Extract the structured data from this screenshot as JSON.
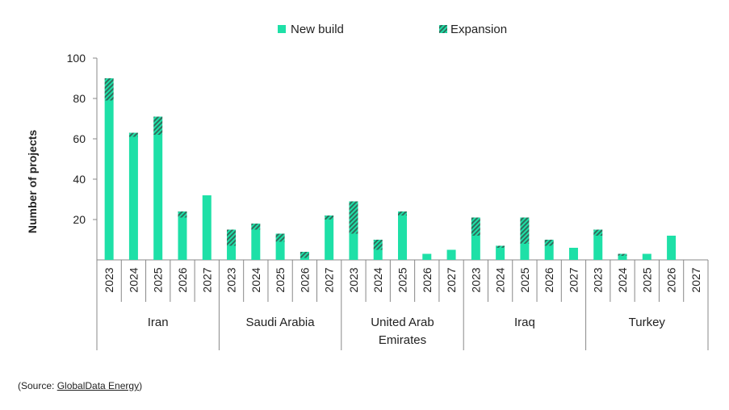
{
  "chart_data": {
    "type": "bar",
    "stacked": true,
    "ylabel": "Number of projects",
    "ylim": [
      0,
      100
    ],
    "yticks": [
      20,
      40,
      60,
      80,
      100
    ],
    "grid": false,
    "legend_position": "top",
    "colors": {
      "new_build": "#1ee0a7",
      "expansion_stripe": "#2e6e5c"
    },
    "groups": [
      {
        "name": "Iran",
        "years": [
          "2023",
          "2024",
          "2025",
          "2026",
          "2027"
        ]
      },
      {
        "name": "Saudi Arabia",
        "years": [
          "2023",
          "2024",
          "2025",
          "2026",
          "2027"
        ]
      },
      {
        "name": "United Arab Emirates",
        "name_lines": [
          "United Arab",
          "Emirates"
        ],
        "years": [
          "2023",
          "2024",
          "2025",
          "2026",
          "2027"
        ]
      },
      {
        "name": "Iraq",
        "years": [
          "2023",
          "2024",
          "2025",
          "2026",
          "2027"
        ]
      },
      {
        "name": "Turkey",
        "years": [
          "2023",
          "2024",
          "2025",
          "2026",
          "2027"
        ]
      }
    ],
    "series": [
      {
        "name": "New build",
        "pattern": "solid",
        "values": [
          79,
          61,
          62,
          21,
          32,
          7,
          15,
          9,
          1,
          20,
          13,
          5,
          22,
          3,
          5,
          12,
          6,
          8,
          7,
          6,
          12,
          2,
          3,
          12,
          0
        ]
      },
      {
        "name": "Expansion",
        "pattern": "hatched",
        "values": [
          11,
          2,
          9,
          3,
          0,
          8,
          3,
          4,
          3,
          2,
          16,
          5,
          2,
          0,
          0,
          9,
          1,
          13,
          3,
          0,
          3,
          1,
          0,
          0,
          0
        ]
      }
    ]
  },
  "source": {
    "prefix": "(Source: ",
    "link": "GlobalData Energy",
    "suffix": ")"
  }
}
